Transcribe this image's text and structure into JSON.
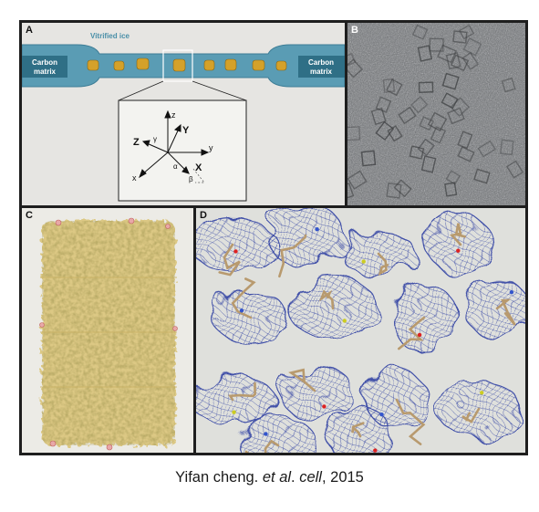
{
  "panels": {
    "a": {
      "label": "A",
      "ice_label": "Vitrified ice",
      "carbon_left": [
        "Carbon",
        "matrix"
      ],
      "carbon_right": [
        "Carbon",
        "matrix"
      ],
      "axes": {
        "z_lower": "z",
        "z_upper": "Z",
        "y_upper": "Y",
        "y_lower": "y",
        "x_lower": "x",
        "x_upper": "X",
        "alpha": "α",
        "beta": "β",
        "gamma": "γ"
      }
    },
    "b": {
      "label": "B"
    },
    "c": {
      "label": "C"
    },
    "d": {
      "label": "D"
    }
  },
  "caption": {
    "author": "Yifan cheng. ",
    "etal": "et al",
    "dot": ". ",
    "journal": "cell",
    "year": ", 2015"
  },
  "colors": {
    "ice": "#5a9cb4",
    "particle": "#d4a12a",
    "density": "#d8c77e",
    "mesh": "#3f4fa8",
    "stick": "#b89a6e"
  }
}
